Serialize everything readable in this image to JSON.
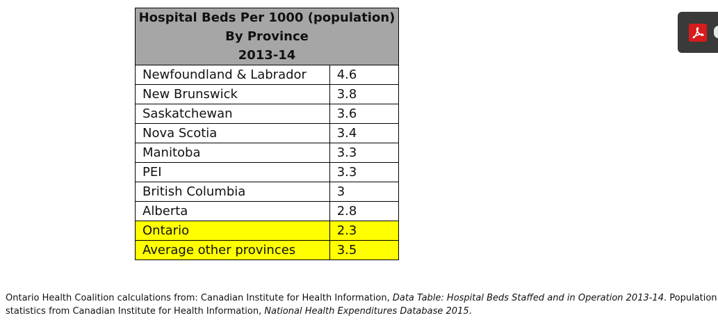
{
  "table": {
    "title_lines": [
      "Hospital Beds Per 1000 (population)",
      "By Province",
      "2013-14"
    ],
    "rows": [
      {
        "province": "Newfoundland & Labrador",
        "value": "4.6",
        "highlight": false
      },
      {
        "province": "New Brunswick",
        "value": "3.8",
        "highlight": false
      },
      {
        "province": "Saskatchewan",
        "value": "3.6",
        "highlight": false
      },
      {
        "province": "Nova Scotia",
        "value": "3.4",
        "highlight": false
      },
      {
        "province": "Manitoba",
        "value": "3.3",
        "highlight": false
      },
      {
        "province": "PEI",
        "value": "3.3",
        "highlight": false
      },
      {
        "province": "British Columbia",
        "value": "3",
        "highlight": false
      },
      {
        "province": "Alberta",
        "value": "2.8",
        "highlight": false
      },
      {
        "province": "Ontario",
        "value": "2.3",
        "highlight": true
      },
      {
        "province": "Average other provinces",
        "value": "3.5",
        "highlight": true
      }
    ],
    "header_color": "#a6a6a6",
    "highlight_color": "#ffff00"
  },
  "source_note": {
    "part1": "Ontario Health Coalition calculations from: Canadian Institute for Health Information, ",
    "italic1": "Data Table: Hospital Beds Staffed and in Operation 2013-14",
    "part2": ". Population statistics from Canadian Institute for Health Information, ",
    "italic2": "National Health Expenditures Database 2015",
    "part3": "."
  },
  "toolbar": {
    "pdf_icon": "adobe-acrobat-pdf-icon"
  }
}
